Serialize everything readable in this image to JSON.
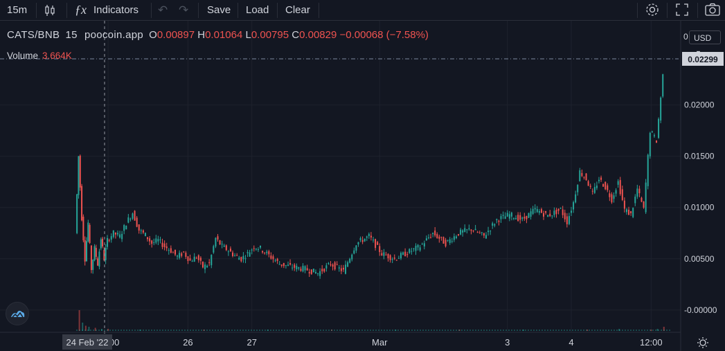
{
  "toolbar": {
    "interval": "15m",
    "indicators_label": "Indicators",
    "save_label": "Save",
    "load_label": "Load",
    "clear_label": "Clear"
  },
  "legend": {
    "symbol": "CATS/BNB",
    "interval": "15",
    "source": "poocoin.app",
    "open_key": "O",
    "open": "0.00897",
    "high_key": "H",
    "high": "0.01064",
    "low_key": "L",
    "low": "0.00795",
    "close_key": "C",
    "close": "0.00829",
    "change": "−0.00068 (−7.58%)",
    "volume_label": "Volume",
    "volume_value": "3.664K"
  },
  "currency": "USD",
  "price_scale_top": "0",
  "last_price_label": "0.02299",
  "crosshair_date_label": "24 Feb '22",
  "colors": {
    "up": "#26a69a",
    "down": "#ef5350",
    "background": "#131722",
    "grid": "#1e222d",
    "text": "#d1d4dc"
  },
  "icons": [
    "candle-type-icon",
    "fx-icon",
    "undo-icon",
    "redo-icon",
    "gear-icon",
    "fullscreen-icon",
    "camera-icon",
    "logo-icon",
    "settings-sun-icon"
  ],
  "chart_data": {
    "type": "line",
    "title": "CATS/BNB · 15 · poocoin.app",
    "y_ticks": [
      "0.02000",
      "0.01500",
      "0.01000",
      "0.00500",
      "-0.00000"
    ],
    "ylim": [
      -0.0015,
      0.0245
    ],
    "x_ticks": [
      {
        "label": "18:00",
        "x": 0.5
      },
      {
        "label": "26",
        "x": 1.75
      },
      {
        "label": "27",
        "x": 2.75
      },
      {
        "label": "Mar",
        "x": 4.75
      },
      {
        "label": "3",
        "x": 6.75
      },
      {
        "label": "4",
        "x": 7.75
      },
      {
        "label": "12:00",
        "x": 9.0
      }
    ],
    "xlim": [
      0,
      9.3
    ],
    "series": [
      {
        "name": "CATS/BNB",
        "x": [
          0.0,
          0.05,
          0.1,
          0.15,
          0.2,
          0.25,
          0.3,
          0.35,
          0.4,
          0.45,
          0.5,
          0.6,
          0.7,
          0.8,
          0.9,
          1.0,
          1.1,
          1.2,
          1.3,
          1.4,
          1.5,
          1.6,
          1.7,
          1.8,
          1.9,
          2.0,
          2.1,
          2.2,
          2.3,
          2.4,
          2.5,
          2.6,
          2.7,
          2.8,
          2.9,
          3.0,
          3.2,
          3.4,
          3.6,
          3.8,
          4.0,
          4.2,
          4.4,
          4.6,
          4.8,
          5.0,
          5.2,
          5.4,
          5.6,
          5.8,
          6.0,
          6.2,
          6.4,
          6.6,
          6.8,
          7.0,
          7.2,
          7.4,
          7.6,
          7.7,
          7.8,
          7.9,
          8.0,
          8.1,
          8.2,
          8.3,
          8.4,
          8.5,
          8.6,
          8.7,
          8.8,
          8.9,
          9.0,
          9.1,
          9.2
        ],
        "y": [
          0.0075,
          0.015,
          0.009,
          0.005,
          0.0085,
          0.004,
          0.006,
          0.0045,
          0.007,
          0.005,
          0.0068,
          0.0075,
          0.0072,
          0.0085,
          0.0095,
          0.0078,
          0.0073,
          0.0065,
          0.0068,
          0.0062,
          0.0058,
          0.0052,
          0.0056,
          0.0048,
          0.0052,
          0.0042,
          0.0045,
          0.007,
          0.0062,
          0.0058,
          0.0053,
          0.005,
          0.0055,
          0.0062,
          0.006,
          0.0055,
          0.0045,
          0.0042,
          0.004,
          0.0036,
          0.0045,
          0.0038,
          0.0065,
          0.0072,
          0.0055,
          0.005,
          0.0056,
          0.0062,
          0.0075,
          0.0065,
          0.0075,
          0.0079,
          0.0072,
          0.0088,
          0.0093,
          0.0088,
          0.0098,
          0.0092,
          0.0098,
          0.0086,
          0.0105,
          0.0135,
          0.0128,
          0.0113,
          0.0128,
          0.012,
          0.0108,
          0.0125,
          0.0098,
          0.0093,
          0.0118,
          0.0098,
          0.0175,
          0.0165,
          0.0229
        ]
      }
    ],
    "volume": {
      "x": [
        0.05,
        0.1,
        0.15,
        0.2,
        0.3,
        0.4,
        0.5,
        1.0,
        2.0,
        3.0,
        4.0,
        5.0,
        6.0,
        7.0,
        8.0,
        8.5,
        9.0,
        9.1,
        9.2
      ],
      "values": [
        20,
        8,
        5,
        4,
        3,
        2,
        2,
        1,
        1,
        1,
        1,
        1,
        1,
        1,
        1,
        2,
        1,
        2,
        4
      ]
    },
    "grid": true,
    "legend": "top-left"
  }
}
